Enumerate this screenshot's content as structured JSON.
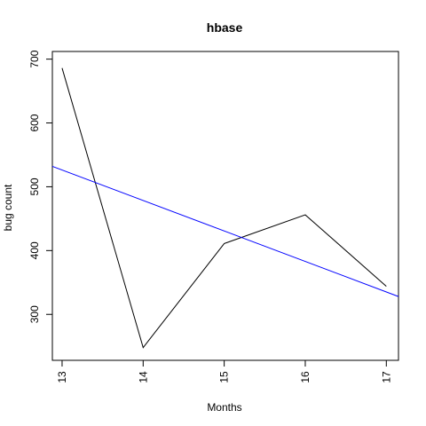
{
  "chart_data": {
    "type": "line",
    "title": "hbase",
    "xlabel": "Months",
    "ylabel": "bug count",
    "x": [
      13,
      14,
      15,
      16,
      17
    ],
    "xlim": [
      12.88,
      17.15
    ],
    "ylim": [
      228,
      712
    ],
    "x_ticks": [
      13,
      14,
      15,
      16,
      17
    ],
    "y_ticks": [
      300,
      400,
      500,
      600,
      700
    ],
    "grid": false,
    "series": [
      {
        "values": [
          686,
          248,
          411,
          456,
          344
        ],
        "color": "#000000"
      }
    ],
    "trend_line": {
      "x": [
        12.88,
        17.15
      ],
      "y": [
        532,
        328
      ],
      "color": "#0000ff"
    }
  }
}
